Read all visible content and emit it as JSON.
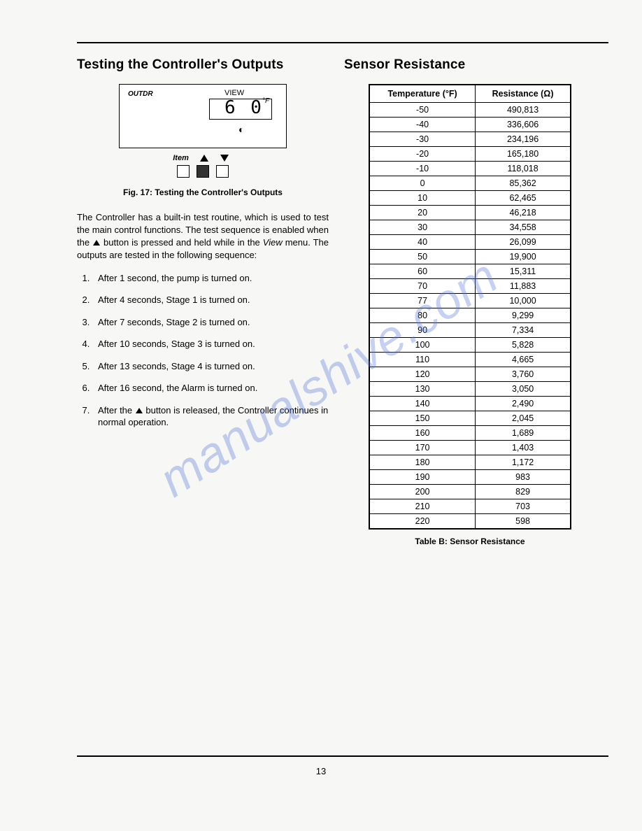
{
  "left": {
    "heading": "Testing the Controller's Outputs",
    "lcd": {
      "outdr": "OUTDR",
      "view": "VIEW",
      "value": "6 0",
      "unit": "°F",
      "item_label": "Item"
    },
    "fig_caption": "Fig. 17: Testing the Controller's Outputs",
    "intro_pre": "The Controller has a built-in test routine, which is used to test the main control functions. The test sequence is enabled when the ",
    "intro_mid": " button is pressed and held while in the ",
    "intro_view": "View",
    "intro_post": " menu. The outputs are tested in the following sequence:",
    "steps": [
      "After 1 second, the pump is turned on.",
      "After 4 seconds, Stage 1 is turned on.",
      "After 7 seconds, Stage 2 is turned on.",
      "After 10 seconds, Stage 3 is turned on.",
      "After 13 seconds, Stage 4 is turned on.",
      "After 16 second, the Alarm is turned on."
    ],
    "step7_pre": "After the ",
    "step7_post": " button is released, the Controller continues in normal operation."
  },
  "right": {
    "heading": "Sensor Resistance",
    "table": {
      "col1": "Temperature (°F)",
      "col2": "Resistance (Ω)",
      "rows": [
        [
          "-50",
          "490,813"
        ],
        [
          "-40",
          "336,606"
        ],
        [
          "-30",
          "234,196"
        ],
        [
          "-20",
          "165,180"
        ],
        [
          "-10",
          "118,018"
        ],
        [
          "0",
          "85,362"
        ],
        [
          "10",
          "62,465"
        ],
        [
          "20",
          "46,218"
        ],
        [
          "30",
          "34,558"
        ],
        [
          "40",
          "26,099"
        ],
        [
          "50",
          "19,900"
        ],
        [
          "60",
          "15,311"
        ],
        [
          "70",
          "11,883"
        ],
        [
          "77",
          "10,000"
        ],
        [
          "80",
          "9,299"
        ],
        [
          "90",
          "7,334"
        ],
        [
          "100",
          "5,828"
        ],
        [
          "110",
          "4,665"
        ],
        [
          "120",
          "3,760"
        ],
        [
          "130",
          "3,050"
        ],
        [
          "140",
          "2,490"
        ],
        [
          "150",
          "2,045"
        ],
        [
          "160",
          "1,689"
        ],
        [
          "170",
          "1,403"
        ],
        [
          "180",
          "1,172"
        ],
        [
          "190",
          "983"
        ],
        [
          "200",
          "829"
        ],
        [
          "210",
          "703"
        ],
        [
          "220",
          "598"
        ]
      ]
    },
    "tbl_caption": "Table B: Sensor Resistance"
  },
  "page_number": "13",
  "watermark": "manualshive.com"
}
